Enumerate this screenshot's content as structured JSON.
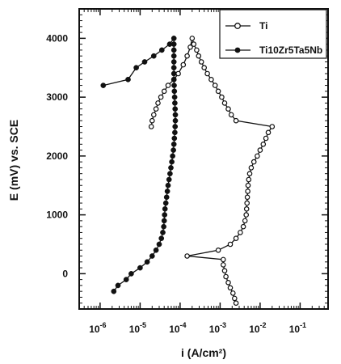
{
  "chart_data": {
    "type": "scatter",
    "xlabel": "i (A/cm²)",
    "ylabel": "E (mV) vs. SCE",
    "x_scale": "log",
    "xlim": [
      3e-07,
      0.5
    ],
    "ylim": [
      -600,
      4500
    ],
    "x_ticks": [
      {
        "value": 1e-06,
        "base": "10",
        "exp": "-6"
      },
      {
        "value": 1e-05,
        "base": "10",
        "exp": "-5"
      },
      {
        "value": 0.0001,
        "base": "10",
        "exp": "-4"
      },
      {
        "value": 0.001,
        "base": "10",
        "exp": "-3"
      },
      {
        "value": 0.01,
        "base": "10",
        "exp": "-2"
      },
      {
        "value": 0.1,
        "base": "10",
        "exp": "-1"
      }
    ],
    "y_ticks": [
      {
        "value": 0,
        "label": "0"
      },
      {
        "value": 1000,
        "label": "1000"
      },
      {
        "value": 2000,
        "label": "2000"
      },
      {
        "value": 3000,
        "label": "3000"
      },
      {
        "value": 4000,
        "label": "4000"
      }
    ],
    "legend_position": "top-right",
    "series": [
      {
        "name": "Ti",
        "marker": "open-circle",
        "color": "#111111",
        "points": [
          [
            0.0025,
            -500
          ],
          [
            0.0023,
            -420
          ],
          [
            0.0021,
            -330
          ],
          [
            0.0018,
            -240
          ],
          [
            0.0016,
            -150
          ],
          [
            0.0014,
            -50
          ],
          [
            0.0013,
            50
          ],
          [
            0.0012,
            150
          ],
          [
            0.0012,
            240
          ],
          [
            0.00015,
            300
          ],
          [
            0.0009,
            400
          ],
          [
            0.0018,
            500
          ],
          [
            0.0025,
            600
          ],
          [
            0.0032,
            700
          ],
          [
            0.0038,
            800
          ],
          [
            0.0042,
            900
          ],
          [
            0.0045,
            1000
          ],
          [
            0.0046,
            1100
          ],
          [
            0.0047,
            1200
          ],
          [
            0.0048,
            1300
          ],
          [
            0.0049,
            1400
          ],
          [
            0.005,
            1500
          ],
          [
            0.0052,
            1600
          ],
          [
            0.0055,
            1700
          ],
          [
            0.006,
            1800
          ],
          [
            0.007,
            1900
          ],
          [
            0.0085,
            2000
          ],
          [
            0.01,
            2100
          ],
          [
            0.012,
            2200
          ],
          [
            0.014,
            2300
          ],
          [
            0.016,
            2400
          ],
          [
            0.02,
            2500
          ],
          [
            0.0025,
            2600
          ],
          [
            0.0019,
            2700
          ],
          [
            0.0016,
            2800
          ],
          [
            0.0013,
            2900
          ],
          [
            0.0011,
            3000
          ],
          [
            0.0009,
            3100
          ],
          [
            0.00075,
            3200
          ],
          [
            0.0006,
            3300
          ],
          [
            0.00048,
            3400
          ],
          [
            0.0004,
            3500
          ],
          [
            0.00034,
            3600
          ],
          [
            0.00029,
            3700
          ],
          [
            0.00026,
            3800
          ],
          [
            0.00022,
            3900
          ],
          [
            0.0002,
            4000
          ],
          [
            0.00018,
            3850
          ],
          [
            0.00015,
            3700
          ],
          [
            0.00012,
            3550
          ],
          [
            9e-05,
            3400
          ],
          [
            7e-05,
            3300
          ],
          [
            5e-05,
            3200
          ],
          [
            4e-05,
            3100
          ],
          [
            3.3e-05,
            3000
          ],
          [
            2.8e-05,
            2900
          ],
          [
            2.5e-05,
            2800
          ],
          [
            2.2e-05,
            2700
          ],
          [
            2e-05,
            2600
          ],
          [
            1.9e-05,
            2500
          ]
        ]
      },
      {
        "name": "Ti10Zr5Ta5Nb",
        "marker": "filled-circle",
        "color": "#111111",
        "points": [
          [
            2.2e-06,
            -300
          ],
          [
            2.8e-06,
            -200
          ],
          [
            4.5e-06,
            -100
          ],
          [
            6e-06,
            0
          ],
          [
            1e-05,
            100
          ],
          [
            1.5e-05,
            200
          ],
          [
            2e-05,
            300
          ],
          [
            2.5e-05,
            400
          ],
          [
            3e-05,
            500
          ],
          [
            3.4e-05,
            600
          ],
          [
            3.7e-05,
            700
          ],
          [
            3.9e-05,
            800
          ],
          [
            4e-05,
            900
          ],
          [
            4.1e-05,
            1000
          ],
          [
            4.2e-05,
            1100
          ],
          [
            4.4e-05,
            1200
          ],
          [
            4.6e-05,
            1300
          ],
          [
            4.8e-05,
            1400
          ],
          [
            5e-05,
            1500
          ],
          [
            5.3e-05,
            1600
          ],
          [
            5.6e-05,
            1700
          ],
          [
            5.9e-05,
            1800
          ],
          [
            6.2e-05,
            1900
          ],
          [
            6.5e-05,
            2000
          ],
          [
            6.8e-05,
            2100
          ],
          [
            7e-05,
            2200
          ],
          [
            7.2e-05,
            2300
          ],
          [
            7.4e-05,
            2400
          ],
          [
            7.5e-05,
            2500
          ],
          [
            7.6e-05,
            2600
          ],
          [
            7.6e-05,
            2700
          ],
          [
            7.5e-05,
            2800
          ],
          [
            7.4e-05,
            2900
          ],
          [
            7.3e-05,
            3000
          ],
          [
            7.2e-05,
            3100
          ],
          [
            7.1e-05,
            3200
          ],
          [
            7e-05,
            3300
          ],
          [
            7e-05,
            3400
          ],
          [
            7e-05,
            3500
          ],
          [
            7e-05,
            3600
          ],
          [
            7e-05,
            3700
          ],
          [
            7e-05,
            3800
          ],
          [
            7e-05,
            3900
          ],
          [
            7e-05,
            4000
          ],
          [
            5.5e-05,
            3900
          ],
          [
            3.5e-05,
            3800
          ],
          [
            2.2e-05,
            3700
          ],
          [
            1.3e-05,
            3600
          ],
          [
            8e-06,
            3500
          ],
          [
            5e-06,
            3300
          ],
          [
            1.2e-06,
            3200
          ]
        ]
      }
    ]
  }
}
